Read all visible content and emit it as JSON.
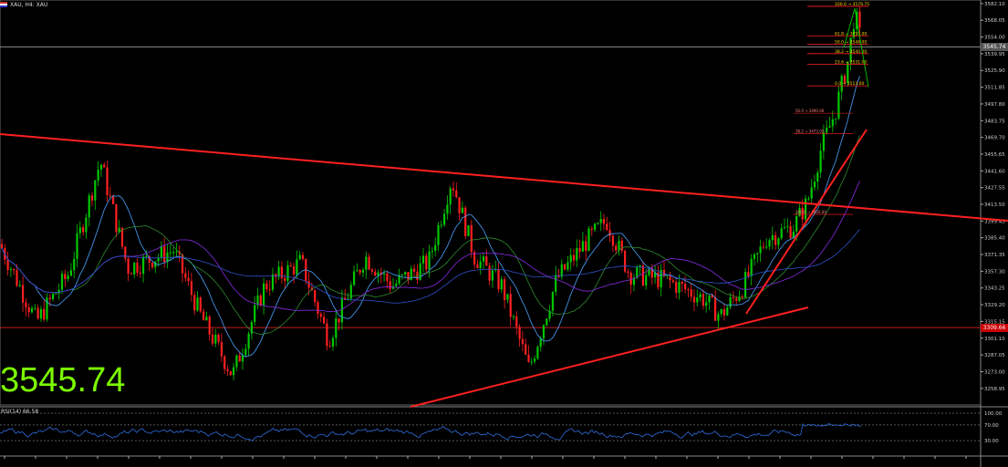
{
  "header": {
    "symbol": "XAU, H4: XAU",
    "flag_icon": "us-flag-icon"
  },
  "current_price_display": "3545.74",
  "price_tag_current": "3545.74",
  "price_tag_red": "3309.66",
  "rsi_label": "RSI(14) 66.58",
  "chart_data": {
    "type": "candlestick",
    "title": "XAU, H4: XAU",
    "ylim": [
      3245,
      3582
    ],
    "yticks": [
      3582.1,
      3568.05,
      3554.0,
      3539.95,
      3525.9,
      3511.85,
      3497.8,
      3483.75,
      3469.7,
      3455.65,
      3441.6,
      3427.55,
      3413.5,
      3399.45,
      3385.4,
      3371.35,
      3357.3,
      3343.25,
      3329.2,
      3315.15,
      3301.1,
      3287.05,
      3273.0,
      3258.95
    ],
    "fib_levels": [
      {
        "label": "100.0",
        "price": 3579.75
      },
      {
        "label": "61.8",
        "price": 3555.0
      },
      {
        "label": "50.0",
        "price": 3548.0
      },
      {
        "label": "38.2",
        "price": 3540.0
      },
      {
        "label": "23.6",
        "price": 3531.0
      },
      {
        "label": "0.0",
        "price": 3513.0
      }
    ],
    "fib_levels_lower": [
      {
        "label": "50.0",
        "price": 3490.0
      },
      {
        "label": "38.2",
        "price": 3473.0
      },
      {
        "label": "100.0",
        "price": 3405.0
      }
    ],
    "hlines": [
      {
        "price": 3545.74,
        "color": "#aaaaaa"
      },
      {
        "price": 3310.0,
        "color": "#ff2a2a"
      }
    ],
    "rsi": {
      "name": "RSI(14)",
      "value": 66.58,
      "levels": [
        70,
        30
      ],
      "range": [
        0,
        100
      ]
    }
  }
}
